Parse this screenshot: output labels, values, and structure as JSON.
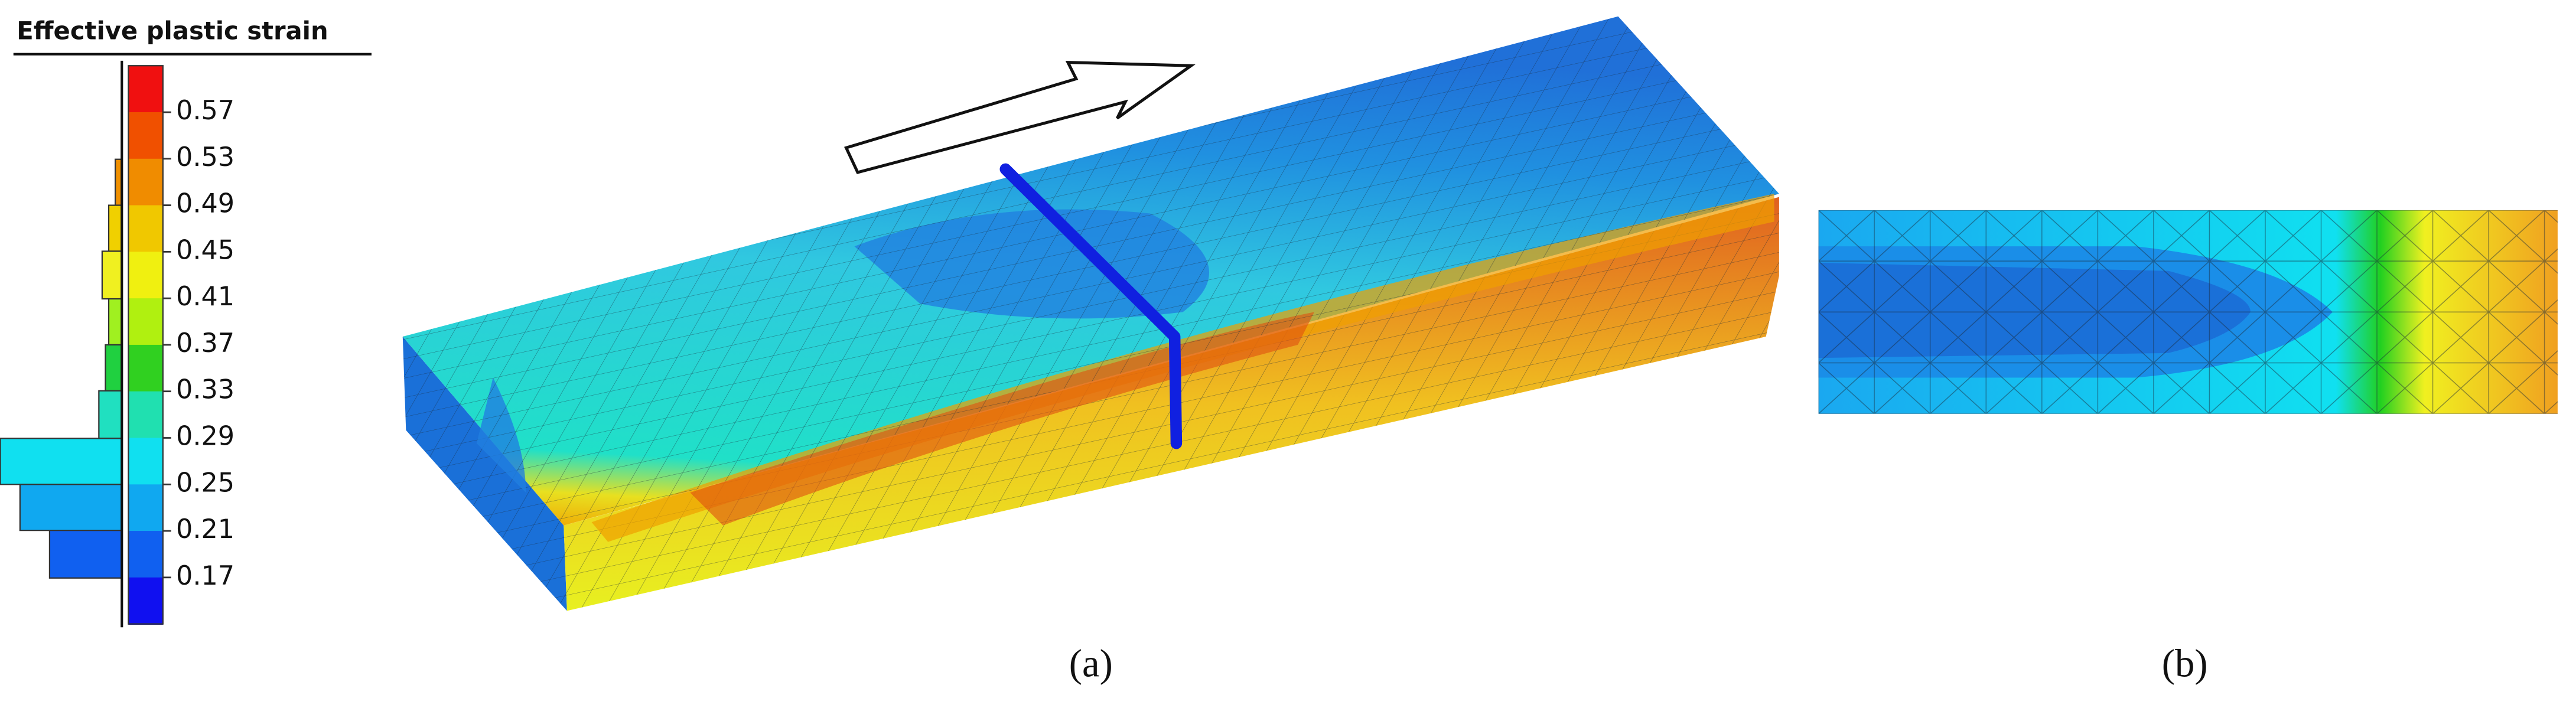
{
  "legend": {
    "title": "Effective plastic strain",
    "ticks": [
      "0.57",
      "0.53",
      "0.49",
      "0.45",
      "0.41",
      "0.37",
      "0.33",
      "0.29",
      "0.25",
      "0.21",
      "0.17"
    ]
  },
  "panels": [
    {
      "label": "(a)"
    },
    {
      "label": "(b)"
    }
  ]
}
